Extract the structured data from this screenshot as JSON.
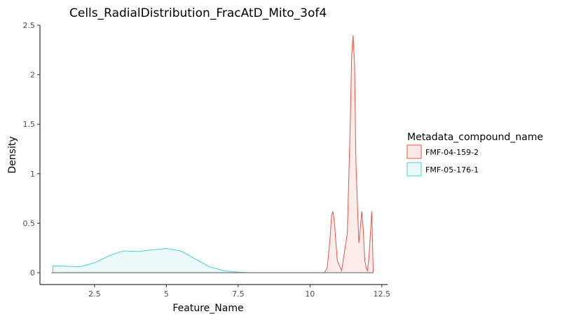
{
  "chart_data": {
    "type": "area",
    "title": "Cells_RadialDistribution_FracAtD_Mito_3of4",
    "xlabel": "Feature_Name",
    "ylabel": "Density",
    "xlim": [
      0.6,
      12.7
    ],
    "ylim": [
      -0.12,
      2.5
    ],
    "x_ticks": [
      2.5,
      5,
      7.5,
      10,
      12.5
    ],
    "x_tick_labels": [
      "2.5",
      "5",
      "7.5",
      "10",
      "12.5"
    ],
    "y_ticks": [
      0,
      0.5,
      1,
      1.5,
      2,
      2.5
    ],
    "y_tick_labels": [
      "0",
      "0.5",
      "1",
      "1.5",
      "2",
      "2.5"
    ],
    "grid": false,
    "legend_title": "Metadata_compound_name",
    "legend_position": "right",
    "series": [
      {
        "name": "FMF-04-159-2",
        "color": "#E0564A",
        "fill": "#FBEAE8",
        "x": [
          1.0,
          10.5,
          10.6,
          10.7,
          10.75,
          10.8,
          10.85,
          10.95,
          11.1,
          11.3,
          11.4,
          11.45,
          11.5,
          11.55,
          11.6,
          11.7,
          11.75,
          11.8,
          11.85,
          11.9,
          11.95,
          12.0,
          12.05,
          12.15,
          12.2
        ],
        "values": [
          0.0,
          0.0,
          0.05,
          0.35,
          0.58,
          0.62,
          0.5,
          0.12,
          0.02,
          0.4,
          1.5,
          2.2,
          2.4,
          2.1,
          1.1,
          0.3,
          0.45,
          0.62,
          0.45,
          0.15,
          0.05,
          0.02,
          0.15,
          0.62,
          0.0
        ]
      },
      {
        "name": "FMF-05-176-1",
        "color": "#4DD0D6",
        "fill": "#E9F8F9",
        "x": [
          1.05,
          1.5,
          2.0,
          2.5,
          3.0,
          3.5,
          4.0,
          4.5,
          5.0,
          5.5,
          6.0,
          6.5,
          7.0,
          7.5,
          8.0,
          9.0,
          10.0,
          11.0,
          12.2
        ],
        "values": [
          0.07,
          0.065,
          0.06,
          0.1,
          0.17,
          0.22,
          0.215,
          0.23,
          0.245,
          0.22,
          0.14,
          0.06,
          0.02,
          0.005,
          0.0,
          0.0,
          0.0,
          0.0,
          0.0
        ]
      }
    ]
  }
}
